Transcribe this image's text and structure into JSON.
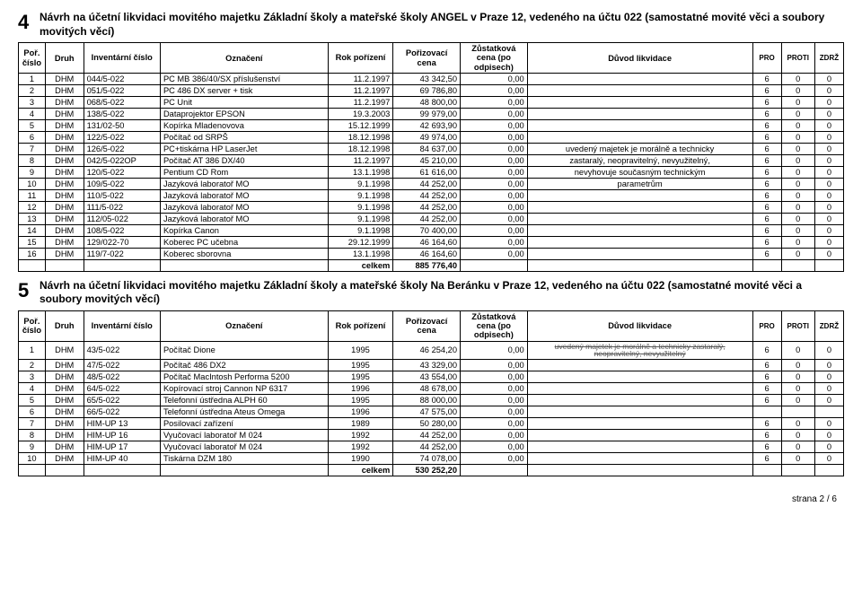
{
  "section4": {
    "number": "4",
    "title": "Návrh na účetní likvidaci movitého majetku Základní školy a mateřské školy ANGEL v Praze 12, vedeného na účtu 022 (samostatné movité věci a soubory movitých věcí)",
    "headers": {
      "por": "Poř. číslo",
      "druh": "Druh",
      "inv": "Inventární číslo",
      "ozn": "Označení",
      "rok": "Rok pořízení",
      "poriz": "Pořizovací cena",
      "zust": "Zůstatková cena (po odpisech)",
      "duvod": "Důvod likvidace",
      "pro": "PRO",
      "proti": "PROTI",
      "zdrz": "ZDRŽ"
    },
    "rows": [
      {
        "n": "1",
        "d": "DHM",
        "i": "044/5-022",
        "o": "PC MB 386/40/SX příslušenství",
        "r": "11.2.1997",
        "p": "43 342,50",
        "z": "0,00",
        "dv": "",
        "pr": "6",
        "pt": "0",
        "zd": "0"
      },
      {
        "n": "2",
        "d": "DHM",
        "i": "051/5-022",
        "o": "PC 486 DX server + tisk",
        "r": "11.2.1997",
        "p": "69 786,80",
        "z": "0,00",
        "dv": "",
        "pr": "6",
        "pt": "0",
        "zd": "0"
      },
      {
        "n": "3",
        "d": "DHM",
        "i": "068/5-022",
        "o": "PC Unit",
        "r": "11.2.1997",
        "p": "48 800,00",
        "z": "0,00",
        "dv": "",
        "pr": "6",
        "pt": "0",
        "zd": "0"
      },
      {
        "n": "4",
        "d": "DHM",
        "i": "138/5-022",
        "o": "Dataprojektor EPSON",
        "r": "19.3.2003",
        "p": "99 979,00",
        "z": "0,00",
        "dv": "",
        "pr": "6",
        "pt": "0",
        "zd": "0"
      },
      {
        "n": "5",
        "d": "DHM",
        "i": "131/02-50",
        "o": "Kopírka Mladenovova",
        "r": "15.12.1999",
        "p": "42 693,90",
        "z": "0,00",
        "dv": "",
        "pr": "6",
        "pt": "0",
        "zd": "0"
      },
      {
        "n": "6",
        "d": "DHM",
        "i": "122/5-022",
        "o": "Počítač od SRPŠ",
        "r": "18.12.1998",
        "p": "49 974,00",
        "z": "0,00",
        "dv": "",
        "pr": "6",
        "pt": "0",
        "zd": "0"
      },
      {
        "n": "7",
        "d": "DHM",
        "i": "126/5-022",
        "o": "PC+tiskárna HP LaserJet",
        "r": "18.12.1998",
        "p": "84 637,00",
        "z": "0,00",
        "dv": "uvedený majetek je morálně a technicky",
        "pr": "6",
        "pt": "0",
        "zd": "0"
      },
      {
        "n": "8",
        "d": "DHM",
        "i": "042/5-022OP",
        "o": "Počítač AT 386 DX/40",
        "r": "11.2.1997",
        "p": "45 210,00",
        "z": "0,00",
        "dv": "zastaralý, neopravitelný, nevyužitelný,",
        "pr": "6",
        "pt": "0",
        "zd": "0"
      },
      {
        "n": "9",
        "d": "DHM",
        "i": "120/5-022",
        "o": "Pentium CD Rom",
        "r": "13.1.1998",
        "p": "61 616,00",
        "z": "0,00",
        "dv": "nevyhovuje současným technickým",
        "pr": "6",
        "pt": "0",
        "zd": "0"
      },
      {
        "n": "10",
        "d": "DHM",
        "i": "109/5-022",
        "o": "Jazyková laboratoř MO",
        "r": "9.1.1998",
        "p": "44 252,00",
        "z": "0,00",
        "dv": "parametrům",
        "pr": "6",
        "pt": "0",
        "zd": "0"
      },
      {
        "n": "11",
        "d": "DHM",
        "i": "110/5-022",
        "o": "Jazyková laboratoř MO",
        "r": "9.1.1998",
        "p": "44 252,00",
        "z": "0,00",
        "dv": "",
        "pr": "6",
        "pt": "0",
        "zd": "0"
      },
      {
        "n": "12",
        "d": "DHM",
        "i": "111/5-022",
        "o": "Jazyková laboratoř MO",
        "r": "9.1.1998",
        "p": "44 252,00",
        "z": "0,00",
        "dv": "",
        "pr": "6",
        "pt": "0",
        "zd": "0"
      },
      {
        "n": "13",
        "d": "DHM",
        "i": "112/05-022",
        "o": "Jazyková laboratoř MO",
        "r": "9.1.1998",
        "p": "44 252,00",
        "z": "0,00",
        "dv": "",
        "pr": "6",
        "pt": "0",
        "zd": "0"
      },
      {
        "n": "14",
        "d": "DHM",
        "i": "108/5-022",
        "o": "Kopírka Canon",
        "r": "9.1.1998",
        "p": "70 400,00",
        "z": "0,00",
        "dv": "",
        "pr": "6",
        "pt": "0",
        "zd": "0"
      },
      {
        "n": "15",
        "d": "DHM",
        "i": "129/022-70",
        "o": "Koberec PC učebna",
        "r": "29.12.1999",
        "p": "46 164,60",
        "z": "0,00",
        "dv": "",
        "pr": "6",
        "pt": "0",
        "zd": "0"
      },
      {
        "n": "16",
        "d": "DHM",
        "i": "119/7-022",
        "o": "Koberec sborovna",
        "r": "13.1.1998",
        "p": "46 164,60",
        "z": "0,00",
        "dv": "",
        "pr": "6",
        "pt": "0",
        "zd": "0"
      }
    ],
    "sum_label": "celkem",
    "sum_value": "885 776,40"
  },
  "section5": {
    "number": "5",
    "title": "Návrh na účetní likvidaci movitého majetku Základní školy a mateřské školy Na Beránku v Praze 12, vedeného na účtu 022 (samostatné movité věci a soubory movitých věcí)",
    "headers": {
      "por": "Poř. číslo",
      "druh": "Druh",
      "inv": "Inventární číslo",
      "ozn": "Označení",
      "rok": "Rok pořízení",
      "poriz": "Pořizovací cena",
      "zust": "Zůstatková cena (po odpisech)",
      "duvod": "Důvod likvidace",
      "pro": "PRO",
      "proti": "PROTI",
      "zdrz": "ZDRŽ"
    },
    "duvod_overflow": "uvedený majetek je morálně a technicky zastaralý, neopravitelný, nevyužitelný",
    "rows": [
      {
        "n": "1",
        "d": "DHM",
        "i": "43/5-022",
        "o": "Počítač Dione",
        "r": "1995",
        "p": "46 254,20",
        "z": "0,00",
        "pr": "6",
        "pt": "0",
        "zd": "0"
      },
      {
        "n": "2",
        "d": "DHM",
        "i": "47/5-022",
        "o": "Počítač 486 DX2",
        "r": "1995",
        "p": "43 329,00",
        "z": "0,00",
        "pr": "6",
        "pt": "0",
        "zd": "0"
      },
      {
        "n": "3",
        "d": "DHM",
        "i": "48/5-022",
        "o": "Počítač MacIntosh Performa 5200",
        "r": "1995",
        "p": "43 554,00",
        "z": "0,00",
        "pr": "6",
        "pt": "0",
        "zd": "0"
      },
      {
        "n": "4",
        "d": "DHM",
        "i": "64/5-022",
        "o": "Kopírovací stroj Cannon NP 6317",
        "r": "1996",
        "p": "48 678,00",
        "z": "0,00",
        "pr": "6",
        "pt": "0",
        "zd": "0"
      },
      {
        "n": "5",
        "d": "DHM",
        "i": "65/5-022",
        "o": "Telefonní ústředna ALPH 60",
        "r": "1995",
        "p": "88 000,00",
        "z": "0,00",
        "pr": "6",
        "pt": "0",
        "zd": "0"
      },
      {
        "n": "6",
        "d": "DHM",
        "i": "66/5-022",
        "o": "Telefonní ústředna Ateus Omega",
        "r": "1996",
        "p": "47 575,00",
        "z": "0,00",
        "pr": "",
        "pt": "",
        "zd": ""
      },
      {
        "n": "7",
        "d": "DHM",
        "i": "HIM-UP 13",
        "o": "Posilovací zařízení",
        "r": "1989",
        "p": "50 280,00",
        "z": "0,00",
        "pr": "6",
        "pt": "0",
        "zd": "0"
      },
      {
        "n": "8",
        "d": "DHM",
        "i": "HIM-UP 16",
        "o": "Vyučovací laboratoř M 024",
        "r": "1992",
        "p": "44 252,00",
        "z": "0,00",
        "pr": "6",
        "pt": "0",
        "zd": "0"
      },
      {
        "n": "9",
        "d": "DHM",
        "i": "HIM-UP 17",
        "o": "Vyučovací laboratoř M 024",
        "r": "1992",
        "p": "44 252,00",
        "z": "0,00",
        "pr": "6",
        "pt": "0",
        "zd": "0"
      },
      {
        "n": "10",
        "d": "DHM",
        "i": "HIM-UP 40",
        "o": "Tiskárna DZM 180",
        "r": "1990",
        "p": "74 078,00",
        "z": "0,00",
        "pr": "6",
        "pt": "0",
        "zd": "0"
      }
    ],
    "sum_label": "celkem",
    "sum_value": "530 252,20"
  },
  "footer": "strana 2 / 6"
}
